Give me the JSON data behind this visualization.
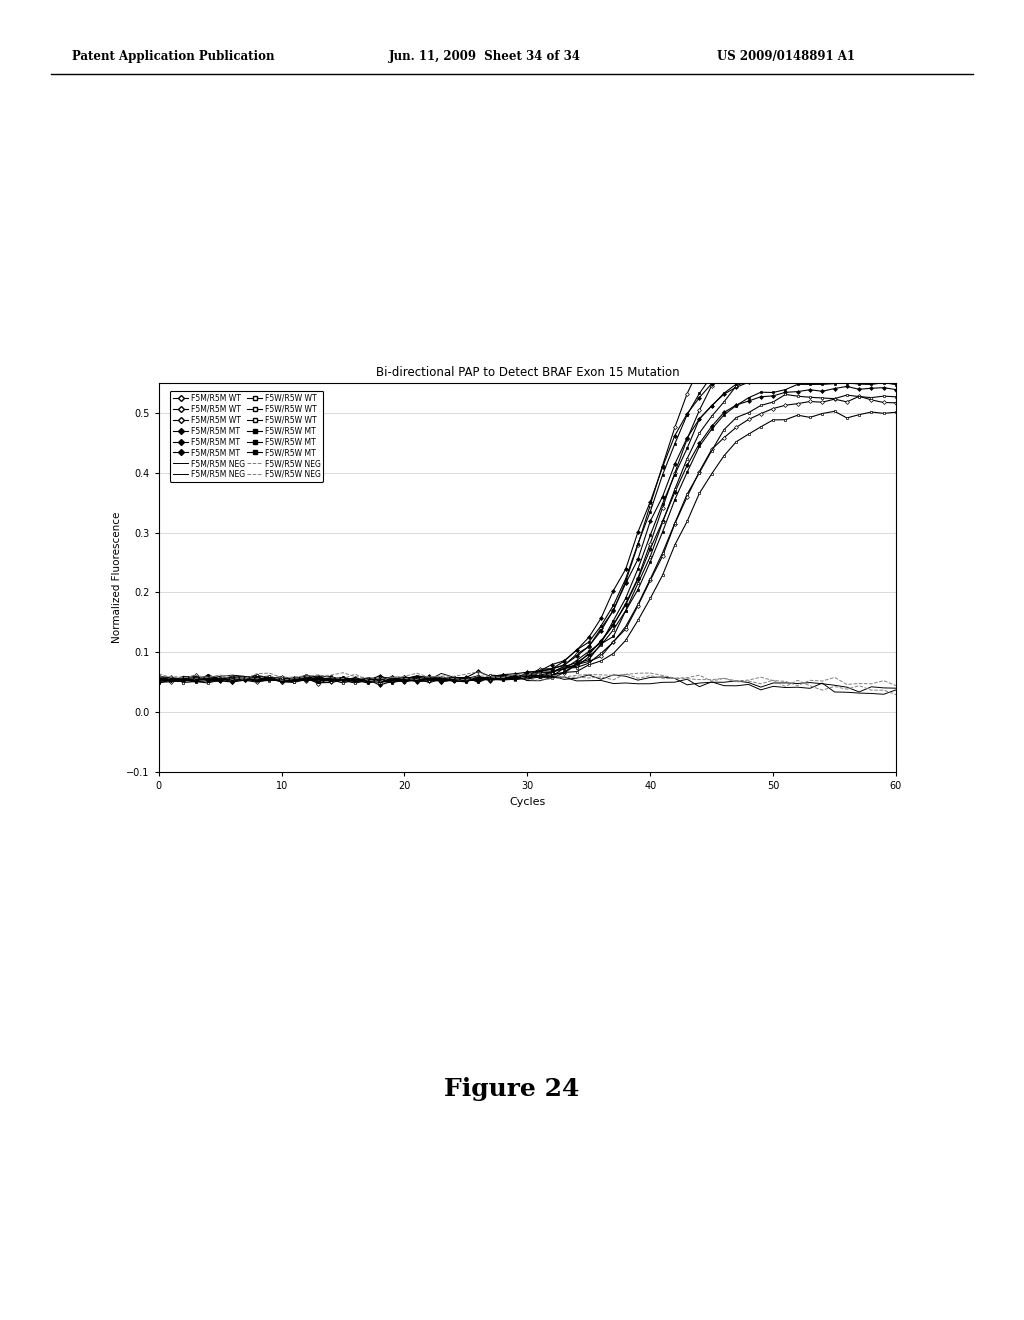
{
  "title": "Bi-directional PAP to Detect BRAF Exon 15 Mutation",
  "xlabel": "Cycles",
  "ylabel": "Normalized Fluorescence",
  "xlim": [
    0,
    60
  ],
  "ylim": [
    -0.1,
    0.55
  ],
  "yticks": [
    -0.1,
    0.0,
    0.1,
    0.2,
    0.3,
    0.4,
    0.5
  ],
  "xticks": [
    0,
    10,
    20,
    30,
    40,
    50,
    60
  ],
  "header_left": "Patent Application Publication",
  "header_center": "Jun. 11, 2009  Sheet 34 of 34",
  "header_right": "US 2009/0148891 A1",
  "figure_label": "Figure 24",
  "background_color": "#ffffff",
  "plot_bg": "#ffffff"
}
